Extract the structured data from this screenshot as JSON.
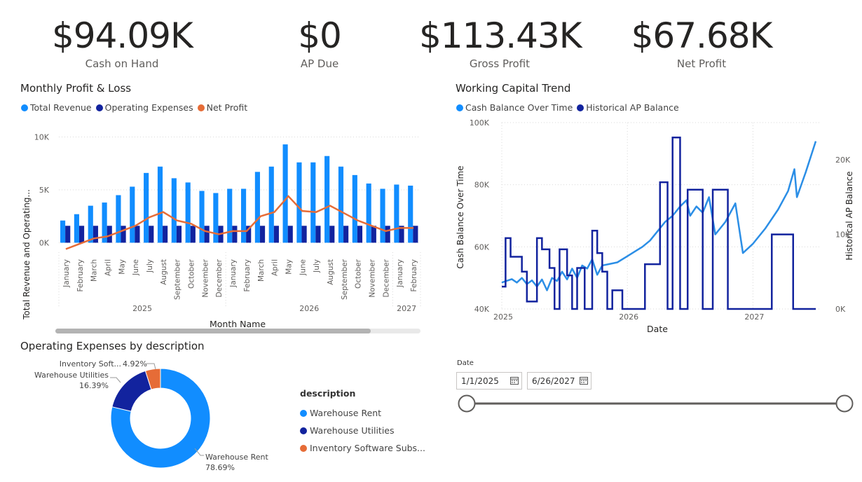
{
  "kpis": [
    {
      "value": "$94.09K",
      "label": "Cash on Hand"
    },
    {
      "value": "$0",
      "label": "AP Due"
    },
    {
      "value": "$113.43K",
      "label": "Gross Profit"
    },
    {
      "value": "$67.68K",
      "label": "Net Profit"
    }
  ],
  "pl_chart": {
    "title": "Monthly Profit & Loss",
    "legend": [
      {
        "name": "Total Revenue",
        "color": "#118dff"
      },
      {
        "name": "Operating Expenses",
        "color": "#12239e"
      },
      {
        "name": "Net Profit",
        "color": "#e66c37"
      }
    ],
    "ylabel": "Total Revenue and Operating...",
    "xlabel": "Month Name",
    "yticks": [
      "10K",
      "5K",
      "0K"
    ]
  },
  "wc_chart": {
    "title": "Working Capital Trend",
    "legend": [
      {
        "name": "Cash Balance Over Time",
        "color": "#118dff"
      },
      {
        "name": "Historical AP Balance",
        "color": "#12239e"
      }
    ],
    "ylabel_left": "Cash Balance Over Time",
    "ylabel_right": "Historical AP Balance",
    "xlabel": "Date",
    "yticks_left": [
      "100K",
      "80K",
      "60K",
      "40K"
    ],
    "yticks_right": [
      "20K",
      "10K",
      "0K"
    ],
    "xticks": [
      "2025",
      "2026",
      "2027"
    ]
  },
  "opex_chart": {
    "title": "Operating Expenses by description",
    "legend_title": "description",
    "legend": [
      {
        "name": "Warehouse Rent",
        "color": "#118dff"
      },
      {
        "name": "Warehouse Utilities",
        "color": "#12239e"
      },
      {
        "name": "Inventory Software Subs...",
        "color": "#e66c37"
      }
    ],
    "labels": [
      {
        "name": "Warehouse Rent",
        "pct": "78.69%"
      },
      {
        "name": "Warehouse Utilities",
        "pct": "16.39%"
      },
      {
        "name": "Inventory Soft...",
        "pct": "4.92%"
      }
    ]
  },
  "date_slicer": {
    "label": "Date",
    "start": "1/1/2025",
    "end": "6/26/2027"
  },
  "chart_data": [
    {
      "type": "bar",
      "title": "Monthly Profit & Loss",
      "xlabel": "Month Name",
      "ylabel": "Total Revenue and Operating...",
      "ylim": [
        -500,
        10500
      ],
      "year_groups": [
        {
          "label": "2025",
          "count": 12
        },
        {
          "label": "2026",
          "count": 12
        },
        {
          "label": "2027",
          "count": 2
        }
      ],
      "categories": [
        "January",
        "February",
        "March",
        "April",
        "May",
        "June",
        "July",
        "August",
        "September",
        "October",
        "November",
        "December",
        "January",
        "February",
        "March",
        "April",
        "May",
        "June",
        "July",
        "August",
        "September",
        "October",
        "November",
        "December",
        "January",
        "February"
      ],
      "series": [
        {
          "name": "Total Revenue",
          "values": [
            2100,
            2700,
            3500,
            3800,
            4500,
            5300,
            6600,
            7200,
            6100,
            5700,
            4900,
            4700,
            5100,
            5100,
            6700,
            7200,
            9300,
            7600,
            7600,
            8200,
            7200,
            6400,
            5600,
            5100,
            5500,
            5400
          ]
        },
        {
          "name": "Operating Expenses",
          "values": [
            1600,
            1600,
            1600,
            1600,
            1600,
            1600,
            1600,
            1600,
            1600,
            1600,
            1600,
            1600,
            1600,
            1600,
            1600,
            1600,
            1600,
            1600,
            1600,
            1600,
            1600,
            1600,
            1600,
            1600,
            1600,
            1600
          ]
        },
        {
          "name": "Net Profit",
          "values": [
            -600,
            -100,
            400,
            600,
            1100,
            1600,
            2400,
            2900,
            2100,
            1800,
            1100,
            800,
            1100,
            1100,
            2500,
            2900,
            4400,
            3000,
            2900,
            3500,
            2800,
            2100,
            1600,
            1100,
            1400,
            1400
          ]
        }
      ]
    },
    {
      "type": "line",
      "title": "Working Capital Trend",
      "xlabel": "Date",
      "ylabel": "Cash Balance Over Time",
      "ylim": [
        40000,
        100000
      ],
      "y2lim": [
        0,
        25000
      ],
      "xlim": [
        2025.0,
        2027.5
      ],
      "series": [
        {
          "name": "Cash Balance Over Time",
          "axis": "left",
          "points": [
            [
              2025.0,
              48500
            ],
            [
              2025.05,
              49200
            ],
            [
              2025.08,
              49600
            ],
            [
              2025.12,
              48500
            ],
            [
              2025.16,
              50000
            ],
            [
              2025.2,
              48000
            ],
            [
              2025.24,
              49200
            ],
            [
              2025.28,
              47200
            ],
            [
              2025.32,
              49500
            ],
            [
              2025.36,
              46000
            ],
            [
              2025.4,
              50000
            ],
            [
              2025.44,
              49000
            ],
            [
              2025.48,
              52000
            ],
            [
              2025.52,
              49500
            ],
            [
              2025.56,
              53000
            ],
            [
              2025.6,
              50000
            ],
            [
              2025.64,
              54000
            ],
            [
              2025.68,
              53000
            ],
            [
              2025.72,
              56000
            ],
            [
              2025.76,
              51000
            ],
            [
              2025.8,
              54000
            ],
            [
              2025.86,
              54500
            ],
            [
              2025.92,
              55000
            ],
            [
              2026.0,
              57000
            ],
            [
              2026.06,
              58500
            ],
            [
              2026.12,
              60000
            ],
            [
              2026.18,
              62000
            ],
            [
              2026.24,
              65000
            ],
            [
              2026.3,
              68000
            ],
            [
              2026.36,
              70000
            ],
            [
              2026.42,
              73000
            ],
            [
              2026.47,
              75000
            ],
            [
              2026.5,
              70000
            ],
            [
              2026.55,
              73000
            ],
            [
              2026.6,
              71000
            ],
            [
              2026.65,
              76000
            ],
            [
              2026.7,
              64000
            ],
            [
              2026.78,
              68000
            ],
            [
              2026.86,
              74000
            ],
            [
              2026.92,
              58000
            ],
            [
              2027.0,
              61000
            ],
            [
              2027.1,
              66000
            ],
            [
              2027.2,
              72000
            ],
            [
              2027.28,
              78000
            ],
            [
              2027.33,
              85000
            ],
            [
              2027.35,
              76000
            ],
            [
              2027.42,
              84000
            ],
            [
              2027.5,
              94000
            ]
          ]
        },
        {
          "name": "Historical AP Balance",
          "axis": "right",
          "points": [
            [
              2025.0,
              3000
            ],
            [
              2025.03,
              9500
            ],
            [
              2025.07,
              7000
            ],
            [
              2025.16,
              5000
            ],
            [
              2025.2,
              1000
            ],
            [
              2025.28,
              9500
            ],
            [
              2025.32,
              8000
            ],
            [
              2025.38,
              5500
            ],
            [
              2025.42,
              0
            ],
            [
              2025.46,
              8000
            ],
            [
              2025.52,
              4500
            ],
            [
              2025.56,
              0
            ],
            [
              2025.6,
              5500
            ],
            [
              2025.66,
              0
            ],
            [
              2025.72,
              10500
            ],
            [
              2025.76,
              7500
            ],
            [
              2025.8,
              5000
            ],
            [
              2025.84,
              0
            ],
            [
              2025.88,
              2500
            ],
            [
              2025.96,
              0
            ],
            [
              2026.14,
              0
            ],
            [
              2026.14,
              6000
            ],
            [
              2026.26,
              6000
            ],
            [
              2026.26,
              17000
            ],
            [
              2026.3,
              17000
            ],
            [
              2026.32,
              0
            ],
            [
              2026.36,
              23000
            ],
            [
              2026.42,
              0
            ],
            [
              2026.48,
              16000
            ],
            [
              2026.6,
              16000
            ],
            [
              2026.6,
              0
            ],
            [
              2026.68,
              0
            ],
            [
              2026.68,
              16000
            ],
            [
              2026.8,
              16000
            ],
            [
              2026.8,
              0
            ],
            [
              2027.15,
              0
            ],
            [
              2027.15,
              10000
            ],
            [
              2027.32,
              10000
            ],
            [
              2027.32,
              0
            ],
            [
              2027.5,
              0
            ]
          ]
        }
      ]
    },
    {
      "type": "pie",
      "title": "Operating Expenses by description",
      "labels": [
        "Warehouse Rent",
        "Warehouse Utilities",
        "Inventory Software Subs..."
      ],
      "values": [
        78.69,
        16.39,
        4.92
      ]
    }
  ]
}
